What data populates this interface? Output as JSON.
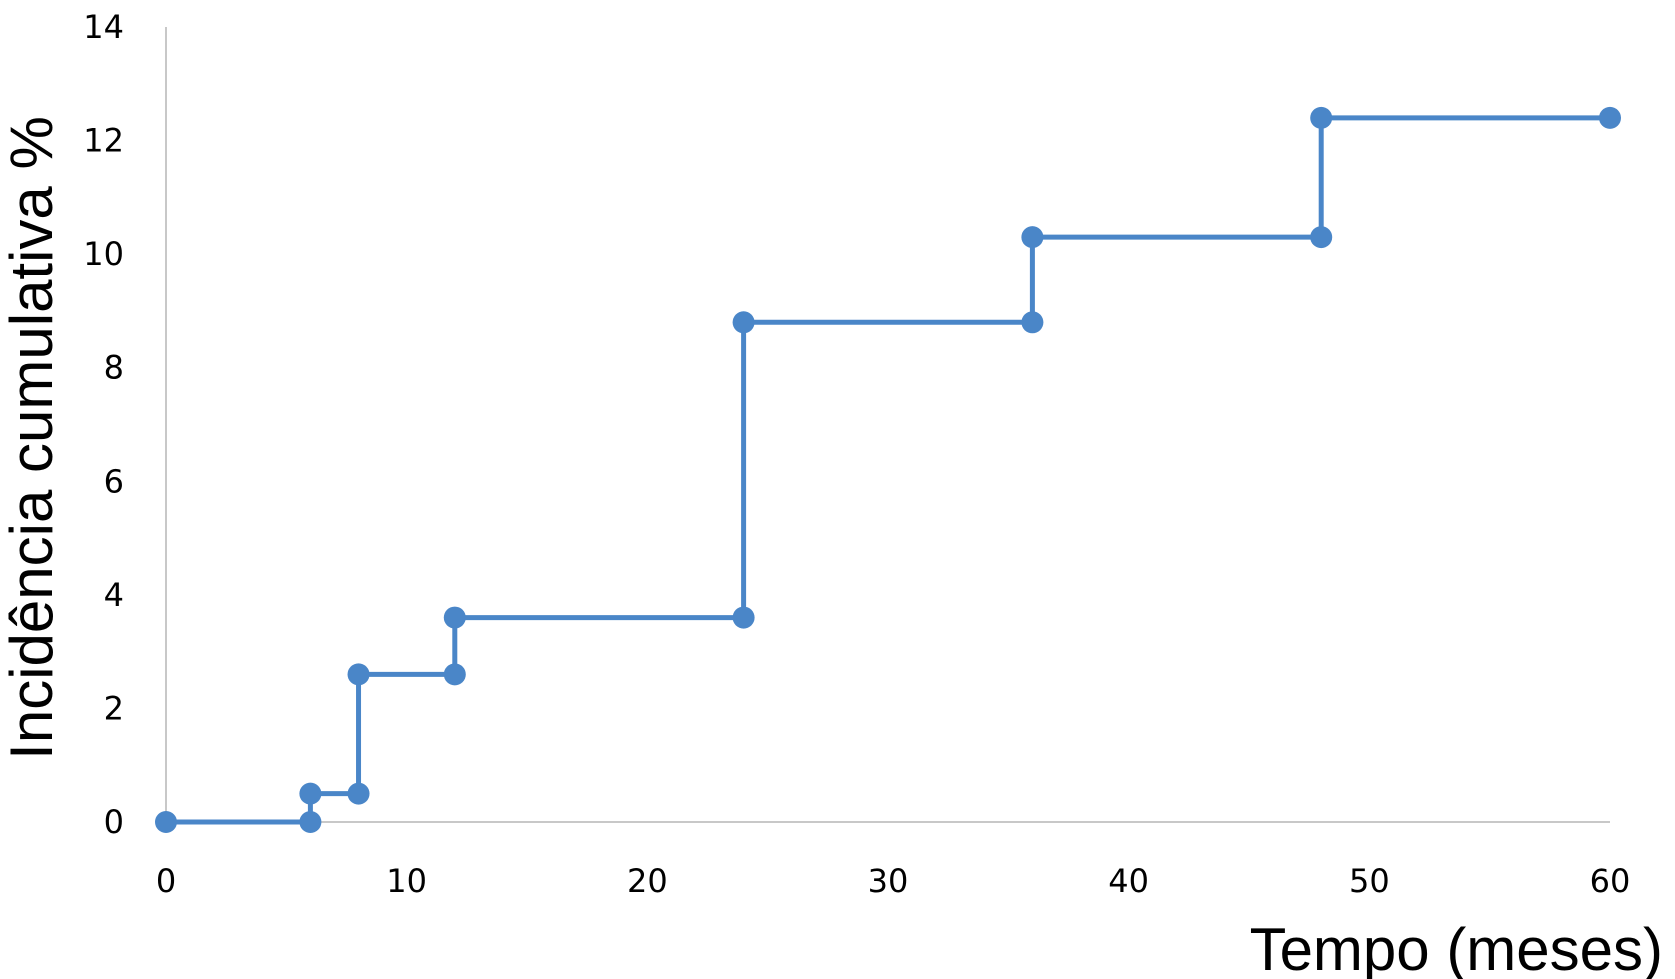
{
  "chart_data": {
    "type": "line",
    "step": true,
    "xlabel": "Tempo (meses)",
    "ylabel": "Incidência cumulativa %",
    "xlim": [
      0,
      60
    ],
    "ylim": [
      0,
      14
    ],
    "xticks": [
      0,
      10,
      20,
      30,
      40,
      50,
      60
    ],
    "yticks": [
      0,
      2,
      4,
      6,
      8,
      10,
      12,
      14
    ],
    "grid": false,
    "legend": "none",
    "color": "#4a86c8",
    "points": [
      {
        "x": 0,
        "y": 0
      },
      {
        "x": 6,
        "y": 0
      },
      {
        "x": 6,
        "y": 0.5
      },
      {
        "x": 8,
        "y": 0.5
      },
      {
        "x": 8,
        "y": 2.6
      },
      {
        "x": 12,
        "y": 2.6
      },
      {
        "x": 12,
        "y": 3.6
      },
      {
        "x": 24,
        "y": 3.6
      },
      {
        "x": 24,
        "y": 8.8
      },
      {
        "x": 36,
        "y": 8.8
      },
      {
        "x": 36,
        "y": 10.3
      },
      {
        "x": 48,
        "y": 10.3
      },
      {
        "x": 48,
        "y": 12.4
      },
      {
        "x": 60,
        "y": 12.4
      }
    ]
  }
}
